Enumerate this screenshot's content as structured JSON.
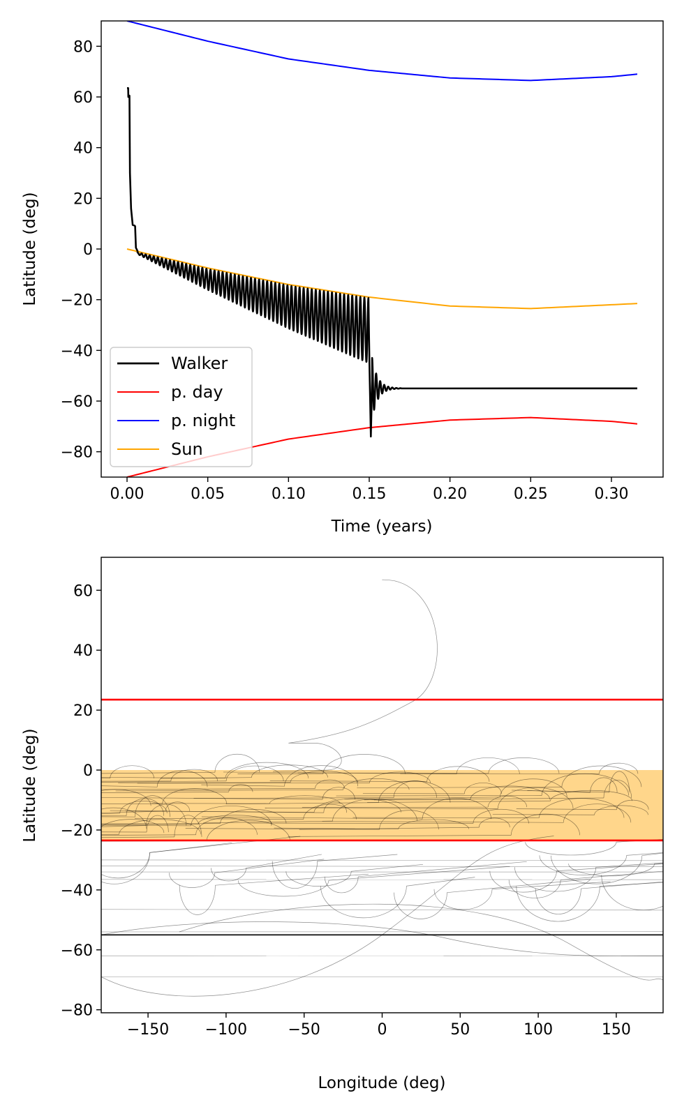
{
  "chart_data": [
    {
      "type": "line",
      "xlabel": "Time (years)",
      "ylabel": "Latitude (deg)",
      "xlim": [
        -0.016,
        0.332
      ],
      "ylim": [
        -90,
        90
      ],
      "xticks": [
        0.0,
        0.05,
        0.1,
        0.15,
        0.2,
        0.25,
        0.3
      ],
      "xtick_labels": [
        "0.00",
        "0.05",
        "0.10",
        "0.15",
        "0.20",
        "0.25",
        "0.30"
      ],
      "yticks": [
        -80,
        -60,
        -40,
        -20,
        0,
        20,
        40,
        60,
        80
      ],
      "ytick_labels": [
        "−80",
        "−60",
        "−40",
        "−20",
        "0",
        "20",
        "40",
        "60",
        "80"
      ],
      "legend_position": "lower-left",
      "grid": false,
      "series": [
        {
          "name": "Walker",
          "color": "#000000",
          "summary": {
            "start_lat": 63.5,
            "drop_to": 9,
            "plateau_until": 0.005,
            "oscillate_from": 0.005,
            "oscillate_to": 0.15,
            "min_lat": -74,
            "settle_lat": -55,
            "settle_from": 0.165,
            "end_x": 0.316
          }
        },
        {
          "name": "p. day",
          "color": "#ff0000",
          "x": [
            0.0,
            0.05,
            0.1,
            0.15,
            0.2,
            0.25,
            0.3,
            0.316
          ],
          "y": [
            -90,
            -82,
            -75,
            -70.5,
            -67.5,
            -66.5,
            -68,
            -69
          ]
        },
        {
          "name": "p. night",
          "color": "#0000ff",
          "x": [
            0.0,
            0.05,
            0.1,
            0.15,
            0.2,
            0.25,
            0.3,
            0.316
          ],
          "y": [
            90,
            82,
            75,
            70.5,
            67.5,
            66.5,
            68,
            69
          ]
        },
        {
          "name": "Sun",
          "color": "#ffa500",
          "x": [
            0.0,
            0.05,
            0.1,
            0.15,
            0.2,
            0.25,
            0.3,
            0.316
          ],
          "y": [
            0,
            -7.5,
            -14,
            -19,
            -22.5,
            -23.5,
            -22,
            -21.5
          ]
        }
      ]
    },
    {
      "type": "line",
      "xlabel": "Longitude (deg)",
      "ylabel": "Latitude (deg)",
      "xlim": [
        -180,
        180
      ],
      "ylim": [
        -81,
        71
      ],
      "xticks": [
        -150,
        -100,
        -50,
        0,
        50,
        100,
        150
      ],
      "xtick_labels": [
        "−150",
        "−100",
        "−50",
        "0",
        "50",
        "100",
        "150"
      ],
      "yticks": [
        -80,
        -60,
        -40,
        -20,
        0,
        20,
        40,
        60
      ],
      "ytick_labels": [
        "−80",
        "−60",
        "−40",
        "−20",
        "0",
        "20",
        "40",
        "60"
      ],
      "grid": false,
      "tropic_lines": {
        "color": "#ff0000",
        "y": [
          23.5,
          -23.5
        ]
      },
      "sun_band": {
        "color": "#ffc864",
        "from": 0,
        "to": -23.5
      },
      "track": {
        "color": "#000000",
        "start": [
          0,
          63.5
        ],
        "settle_lat": -55
      }
    }
  ]
}
